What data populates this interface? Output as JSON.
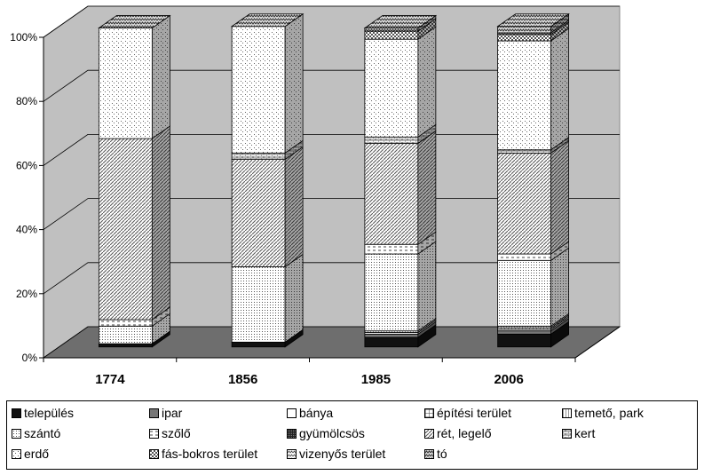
{
  "chart_data": {
    "type": "bar",
    "stacked": true,
    "percent": true,
    "three_d": true,
    "categories": [
      "1774",
      "1856",
      "1985",
      "2006"
    ],
    "ylim": [
      0,
      100
    ],
    "yticks": [
      "0%",
      "20%",
      "40%",
      "60%",
      "80%",
      "100%"
    ],
    "grid": true,
    "legend_position": "bottom",
    "series": [
      {
        "name": "település",
        "values": [
          1,
          1.5,
          3,
          4
        ]
      },
      {
        "name": "ipar",
        "values": [
          0,
          0,
          1,
          1
        ]
      },
      {
        "name": "bánya",
        "values": [
          0,
          0,
          0.5,
          0.5
        ]
      },
      {
        "name": "építési terület",
        "values": [
          0,
          0,
          0,
          0.5
        ]
      },
      {
        "name": "temető, park",
        "values": [
          0,
          0,
          0.5,
          0.5
        ]
      },
      {
        "name": "szántó",
        "values": [
          5.5,
          23.5,
          24,
          20.5
        ]
      },
      {
        "name": "szőlő",
        "values": [
          2,
          0,
          3,
          2
        ]
      },
      {
        "name": "gyümölcsös",
        "values": [
          0,
          0,
          0,
          0
        ]
      },
      {
        "name": "rét, legelő",
        "values": [
          56.5,
          33.5,
          31.5,
          31.5
        ]
      },
      {
        "name": "kert",
        "values": [
          0,
          2,
          2,
          1
        ]
      },
      {
        "name": "erdő",
        "values": [
          34.5,
          39.5,
          30.5,
          34
        ]
      },
      {
        "name": "fás-bokros terület",
        "values": [
          0,
          0,
          2.5,
          2
        ]
      },
      {
        "name": "vizenyős terület",
        "values": [
          0,
          0,
          0,
          0.5
        ]
      },
      {
        "name": "tó",
        "values": [
          0,
          0,
          1,
          2
        ]
      }
    ]
  },
  "legend": {
    "rows": [
      [
        "település",
        "ipar",
        "bánya",
        "építési terület",
        "temető, park"
      ],
      [
        "szántó",
        "szőlő",
        "gyümölcsös",
        "rét, legelő",
        "kert"
      ],
      [
        "erdő",
        "fás-bokros terület",
        "vizenyős terület",
        "tó"
      ]
    ]
  }
}
